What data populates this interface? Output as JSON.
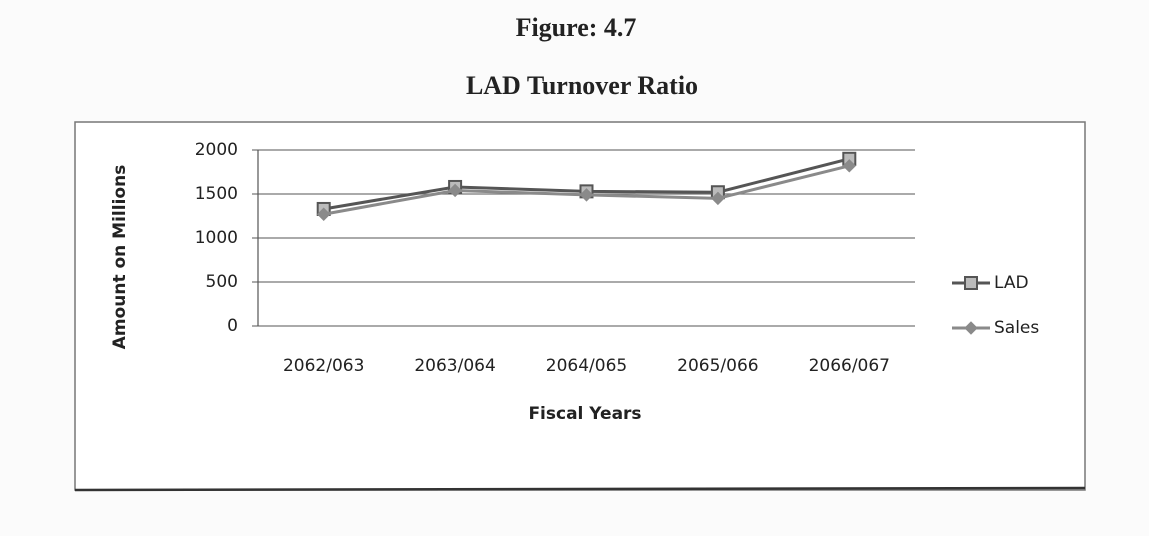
{
  "chart_data": {
    "type": "line",
    "title": "Figure: 4.7",
    "subtitle": "LAD Turnover Ratio",
    "x_label": "Fiscal Years",
    "y_label": "Amount on Millions",
    "categories": [
      "2062/063",
      "2063/064",
      "2064/065",
      "2065/066",
      "2066/067"
    ],
    "series": [
      {
        "name": "LAD",
        "color": "#555555",
        "marker": "square",
        "values": [
          1330,
          1580,
          1530,
          1520,
          1900
        ]
      },
      {
        "name": "Sales",
        "color": "#8a8a8a",
        "marker": "diamond",
        "values": [
          1270,
          1540,
          1490,
          1450,
          1820
        ]
      }
    ],
    "ylim": [
      0,
      2000
    ],
    "yticks": [
      0,
      500,
      1000,
      1500,
      2000
    ],
    "grid": true,
    "legend": "right"
  }
}
